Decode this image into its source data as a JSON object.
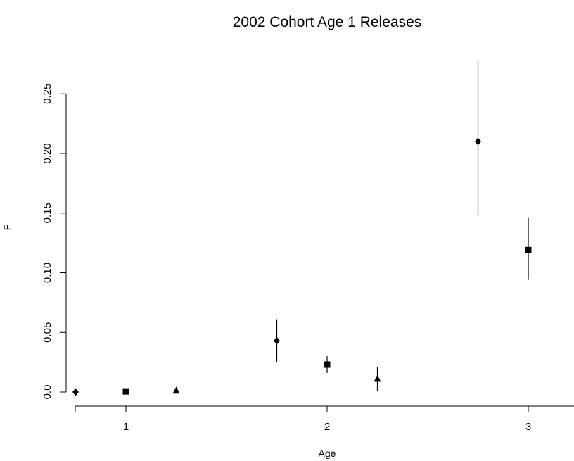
{
  "chart_data": {
    "type": "scatter",
    "title": "2002 Cohort Age 1 Releases",
    "xlabel": "Age",
    "ylabel": "F",
    "xlim": [
      0.75,
      3.25
    ],
    "ylim": [
      0,
      0.25
    ],
    "x_ticks": [
      {
        "value": 1,
        "label": "1"
      },
      {
        "value": 2,
        "label": "2"
      },
      {
        "value": 3,
        "label": "3"
      }
    ],
    "y_ticks": [
      {
        "value": 0,
        "label": "0.0"
      },
      {
        "value": 0.05,
        "label": "0.05"
      },
      {
        "value": 0.1,
        "label": "0.10"
      },
      {
        "value": 0.15,
        "label": "0.15"
      },
      {
        "value": 0.2,
        "label": "0.20"
      },
      {
        "value": 0.25,
        "label": "0.25"
      }
    ],
    "grid": false,
    "legend": "none",
    "series": [
      {
        "marker": "diamond",
        "points": [
          {
            "x": 0.75,
            "y": 0.0,
            "lower": 0.0,
            "upper": 0.0
          },
          {
            "x": 1.75,
            "y": 0.043,
            "lower": 0.025,
            "upper": 0.061
          },
          {
            "x": 2.75,
            "y": 0.21,
            "lower": 0.148,
            "upper": 0.278
          }
        ]
      },
      {
        "marker": "square",
        "points": [
          {
            "x": 1.0,
            "y": 0.0005,
            "lower": 0.0,
            "upper": 0.001
          },
          {
            "x": 2.0,
            "y": 0.023,
            "lower": 0.016,
            "upper": 0.03
          },
          {
            "x": 3.0,
            "y": 0.119,
            "lower": 0.094,
            "upper": 0.146
          }
        ]
      },
      {
        "marker": "triangle",
        "points": [
          {
            "x": 1.25,
            "y": 0.001,
            "lower": 0.0,
            "upper": 0.002
          },
          {
            "x": 2.25,
            "y": 0.011,
            "lower": 0.001,
            "upper": 0.021
          }
        ]
      }
    ],
    "colors": {
      "marker": "#000000",
      "axis": "#000000",
      "background": "#ffffff"
    }
  }
}
